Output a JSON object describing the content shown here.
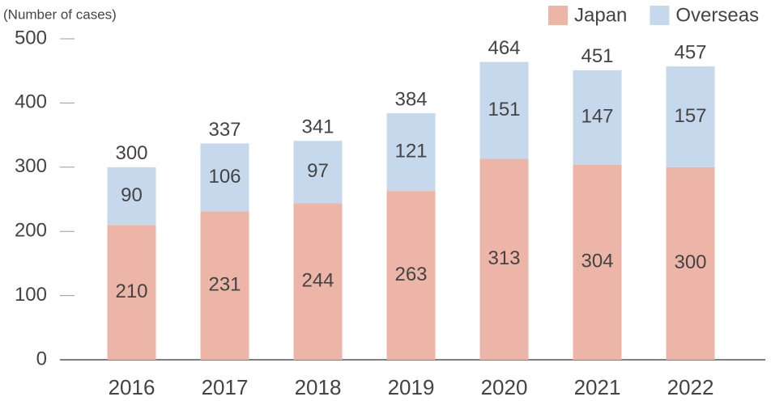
{
  "chart_data": {
    "type": "stacked-bar",
    "y_label": "(Number of cases)",
    "categories": [
      "2016",
      "2017",
      "2018",
      "2019",
      "2020",
      "2021",
      "2022"
    ],
    "series": [
      {
        "name": "Japan",
        "color": "#ecb5a8",
        "values": [
          210,
          231,
          244,
          263,
          313,
          304,
          300
        ]
      },
      {
        "name": "Overseas",
        "color": "#c6d8eb",
        "values": [
          90,
          106,
          97,
          121,
          151,
          147,
          157
        ]
      }
    ],
    "totals": [
      300,
      337,
      341,
      384,
      464,
      451,
      457
    ],
    "ylim": [
      0,
      500
    ],
    "yticks": [
      0,
      100,
      200,
      300,
      400,
      500
    ],
    "legend": "top-right"
  }
}
